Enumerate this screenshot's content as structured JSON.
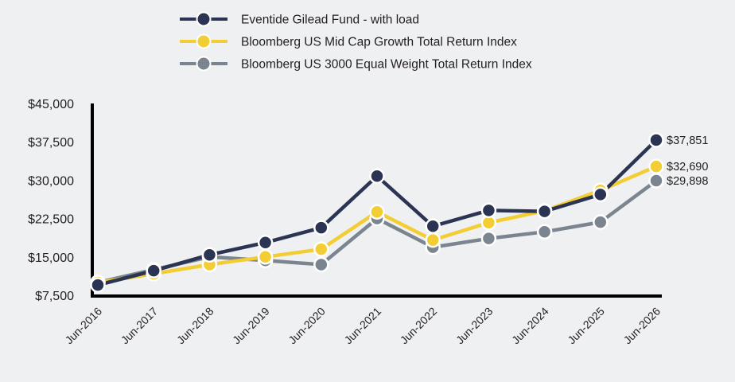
{
  "colors": {
    "background": "#eff0f2",
    "axis": "#000000",
    "text": "#231f20"
  },
  "chart_data": {
    "type": "line",
    "title": "",
    "xlabel": "",
    "ylabel": "",
    "categories": [
      "Jun-2016",
      "Jun-2017",
      "Jun-2018",
      "Jun-2019",
      "Jun-2020",
      "Jun-2021",
      "Jun-2022",
      "Jun-2023",
      "Jun-2024",
      "Jun-2025",
      "Jun-2026"
    ],
    "yticks": [
      "$7,500",
      "$15,000",
      "$22,500",
      "$30,000",
      "$37,500",
      "$45,000"
    ],
    "ytick_values": [
      7500,
      15000,
      22500,
      30000,
      37500,
      45000
    ],
    "ylim": [
      7500,
      45000
    ],
    "grid": false,
    "legend_position": "top",
    "series": [
      {
        "name": "Eventide Gilead Fund - with load",
        "color": "#2b3553",
        "values": [
          9500,
          12300,
          15400,
          17800,
          20700,
          30800,
          21000,
          24100,
          23900,
          27200,
          37851
        ],
        "end_label": "$37,851"
      },
      {
        "name": "Bloomberg US Mid Cap Growth Total Return Index",
        "color": "#f2cd33",
        "values": [
          10000,
          11700,
          13500,
          15000,
          16500,
          23800,
          18300,
          21700,
          24000,
          28000,
          32690
        ],
        "end_label": "$32,690"
      },
      {
        "name": "Bloomberg US 3000 Equal Weight Total Return Index",
        "color": "#7b858f",
        "values": [
          10000,
          12500,
          15000,
          14300,
          13500,
          22500,
          16900,
          18600,
          19900,
          21800,
          29898
        ],
        "end_label": "$29,898"
      }
    ]
  }
}
